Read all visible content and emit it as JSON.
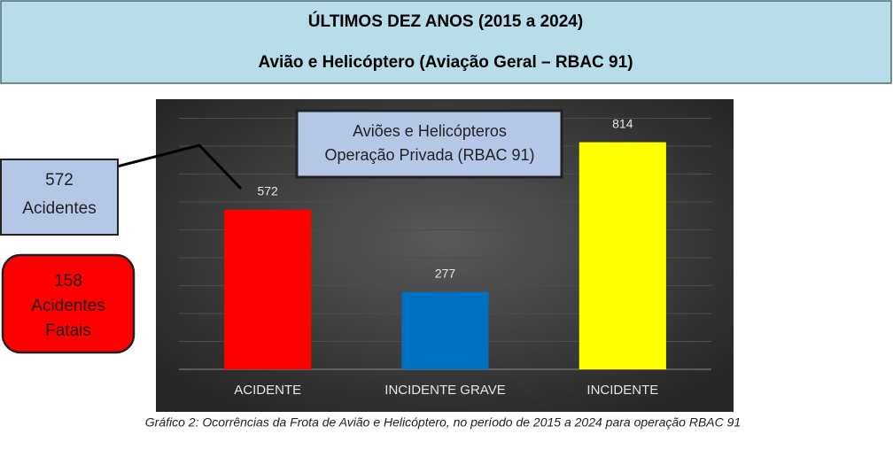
{
  "header": {
    "title": "ÚLTIMOS DEZ ANOS (2015 a 2024)",
    "subtitle": "Avião e Helicóptero (Aviação Geral – RBAC 91)"
  },
  "side_boxes": [
    {
      "lines": [
        "572",
        "Acidentes"
      ]
    },
    {
      "lines": [
        "158",
        "Acidentes",
        "Fatais"
      ]
    }
  ],
  "chart_data": {
    "type": "bar",
    "legend_box": [
      "Aviões e Helicópteros",
      "Operação Privada (RBAC 91)"
    ],
    "categories": [
      "ACIDENTE",
      "INCIDENTE GRAVE",
      "INCIDENTE"
    ],
    "values": [
      572,
      277,
      814
    ],
    "colors": [
      "#ff0000",
      "#0070c0",
      "#ffff00"
    ],
    "ylim": [
      0,
      900
    ],
    "yticks": [
      0,
      100,
      200,
      300,
      400,
      500,
      600,
      700,
      800,
      900
    ],
    "grid": true
  },
  "caption": "Gráfico 2: Ocorrências da Frota de Avião e Helicóptero, no período de 2015 a 2024 para operação RBAC 91"
}
